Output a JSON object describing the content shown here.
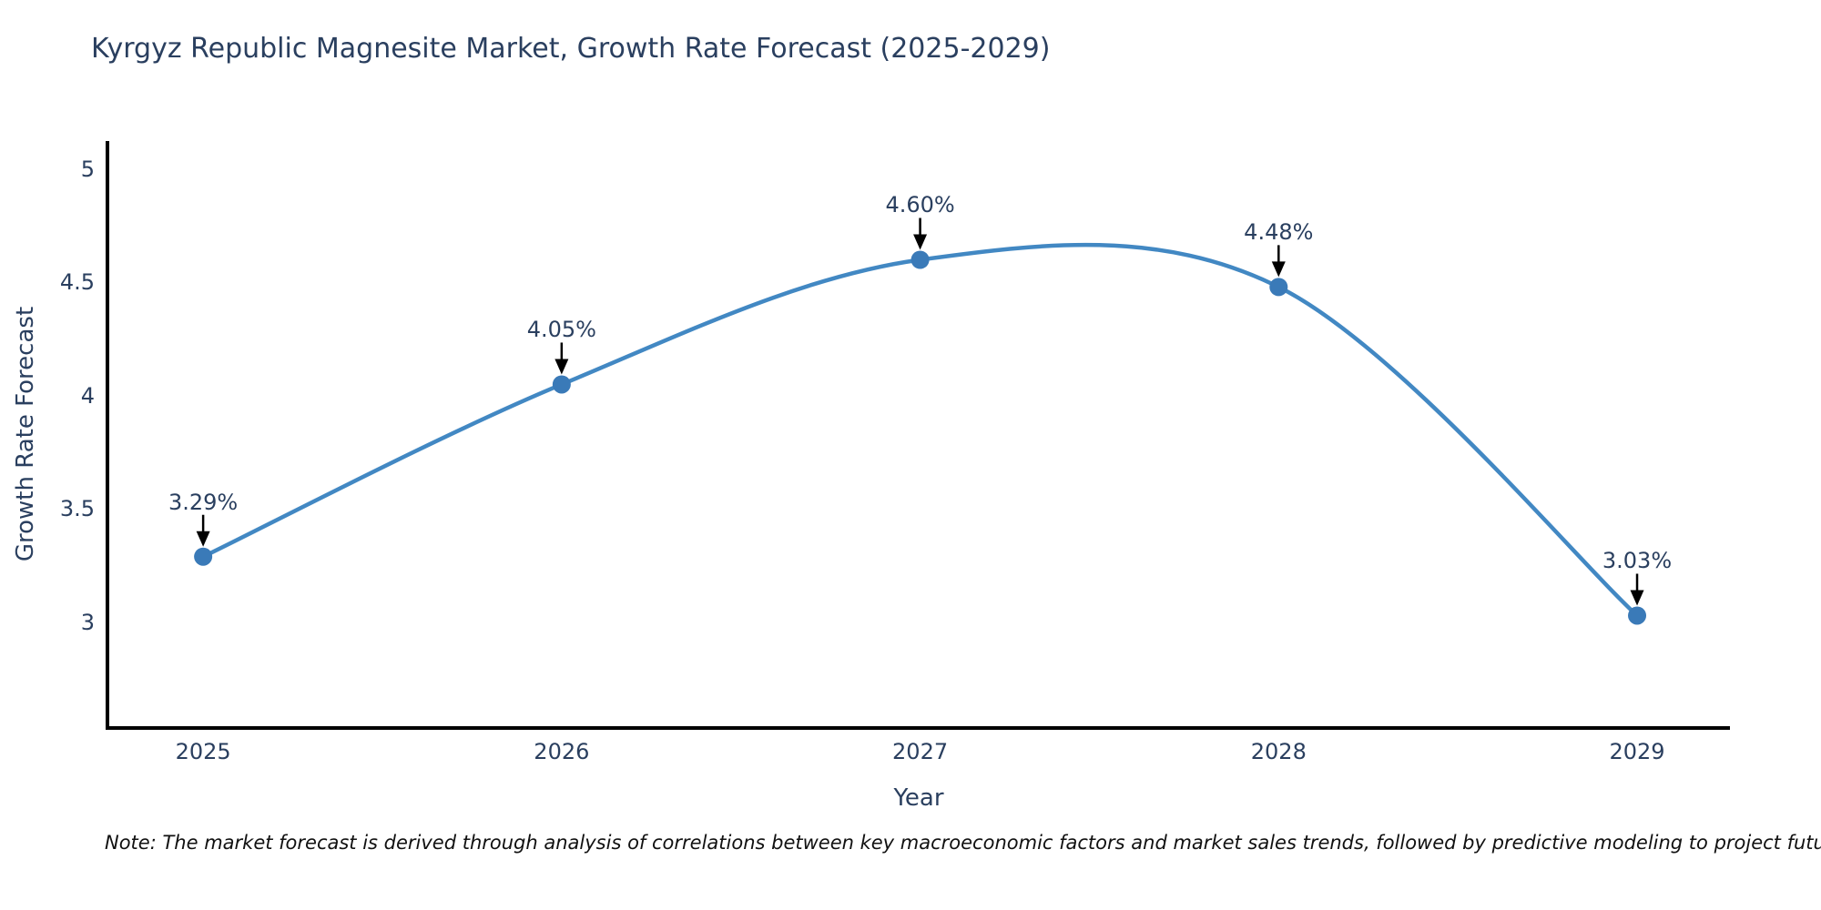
{
  "chart_data": {
    "type": "line",
    "title": "Kyrgyz Republic Magnesite Market, Growth Rate Forecast (2025-2029)",
    "xlabel": "Year",
    "ylabel": "Growth Rate Forecast",
    "x": [
      2025,
      2026,
      2027,
      2028,
      2029
    ],
    "y": [
      3.29,
      4.05,
      4.6,
      4.48,
      3.03
    ],
    "point_labels": [
      "3.29%",
      "4.05%",
      "4.60%",
      "4.48%",
      "3.03%"
    ],
    "xticks": [
      "2025",
      "2026",
      "2027",
      "2028",
      "2029"
    ],
    "yticks": [
      3,
      3.5,
      4,
      4.5,
      5
    ],
    "xlim": [
      2024.733,
      2029.259
    ],
    "ylim": [
      2.534,
      5.124
    ],
    "grid": false,
    "legend": "none",
    "line_shape": "spline",
    "colors": {
      "line": "#4288c3",
      "marker": "#3a7ab8",
      "axis": "#000000",
      "text": "#2a3f5f",
      "annotation_arrow": "#000000"
    }
  },
  "note": {
    "text": "Note: The market forecast is derived through analysis of correlations between key macroeconomic factors and market sales trends, followed by predictive modeling to project future sales"
  }
}
